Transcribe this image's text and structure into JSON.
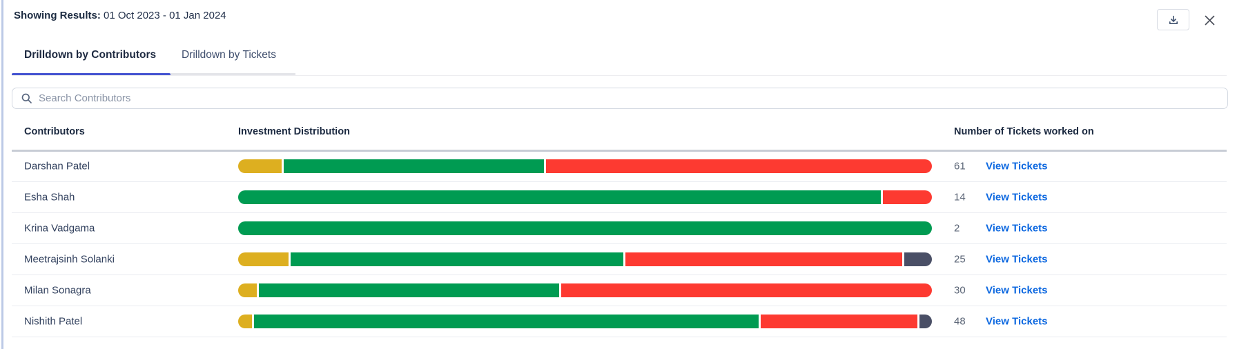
{
  "header": {
    "results_label": "Showing Results:",
    "results_value": "01 Oct 2023 - 01 Jan 2024",
    "download_icon": "download-icon",
    "close_icon": "close-icon"
  },
  "tabs": [
    {
      "label": "Drilldown by Contributors",
      "active": true
    },
    {
      "label": "Drilldown by Tickets",
      "active": false
    }
  ],
  "search": {
    "icon": "search-icon",
    "placeholder": "Search Contributors",
    "value": ""
  },
  "table": {
    "columns": [
      "Contributors",
      "Investment Distribution",
      "Number of Tickets worked on"
    ],
    "view_tickets_label": "View Tickets",
    "rows": [
      {
        "name": "Darshan Patel",
        "tickets": "61",
        "segments": [
          {
            "color": "yellow",
            "value": 63
          },
          {
            "color": "green",
            "value": 378
          },
          {
            "color": "red",
            "value": 560
          }
        ]
      },
      {
        "name": "Esha Shah",
        "tickets": "14",
        "segments": [
          {
            "color": "green",
            "value": 931
          },
          {
            "color": "red",
            "value": 71
          }
        ]
      },
      {
        "name": "Krina Vadgama",
        "tickets": "2",
        "segments": [
          {
            "color": "green",
            "value": 1005
          }
        ]
      },
      {
        "name": "Meetrajsinh Solanki",
        "tickets": "25",
        "segments": [
          {
            "color": "yellow",
            "value": 72
          },
          {
            "color": "green",
            "value": 479
          },
          {
            "color": "red",
            "value": 398
          },
          {
            "color": "slate",
            "value": 40
          }
        ]
      },
      {
        "name": "Milan Sonagra",
        "tickets": "30",
        "segments": [
          {
            "color": "yellow",
            "value": 27
          },
          {
            "color": "green",
            "value": 433
          },
          {
            "color": "red",
            "value": 534
          }
        ]
      },
      {
        "name": "Nishith Patel",
        "tickets": "48",
        "segments": [
          {
            "color": "yellow",
            "value": 20
          },
          {
            "color": "green",
            "value": 725
          },
          {
            "color": "red",
            "value": 225
          },
          {
            "color": "slate",
            "value": 18
          }
        ]
      }
    ]
  },
  "colors": {
    "yellow": "#DDAF20",
    "green": "#009B52",
    "red": "#FD3A31",
    "slate": "#4A4F66",
    "tab_accent": "#4554D1",
    "link_blue": "#0D68E0"
  }
}
